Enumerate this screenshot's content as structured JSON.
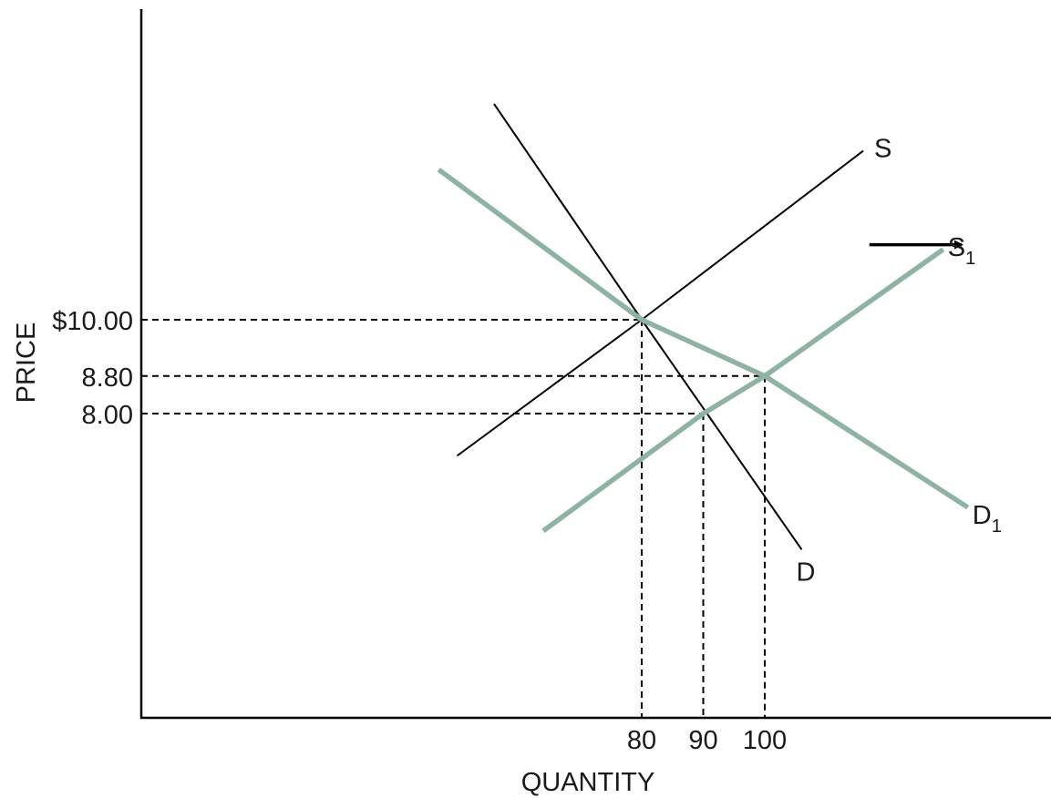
{
  "chart_data": {
    "type": "line",
    "xlabel": "QUANTITY",
    "ylabel": "PRICE",
    "x_ticks": [
      "80",
      "90",
      "100"
    ],
    "y_ticks": [
      "$10.00",
      "8.80",
      "8.00"
    ],
    "colors": {
      "original_curves": "#1a1a1a",
      "shifted_curves": "#8fb3a3",
      "guides": "#1a1a1a"
    },
    "series": [
      {
        "name": "S",
        "label_base": "S",
        "label_sub": "",
        "style": "original",
        "points": [
          [
            50,
            7.1
          ],
          [
            80,
            10.0
          ],
          [
            116,
            13.6
          ]
        ]
      },
      {
        "name": "D",
        "label_base": "D",
        "label_sub": "",
        "style": "original",
        "points": [
          [
            56,
            14.6
          ],
          [
            80,
            10.0
          ],
          [
            106,
            5.1
          ]
        ]
      },
      {
        "name": "S1",
        "label_base": "S",
        "label_sub": "1",
        "style": "shifted",
        "points": [
          [
            64,
            5.5
          ],
          [
            90,
            8.0
          ],
          [
            100,
            8.8
          ],
          [
            129,
            11.5
          ]
        ]
      },
      {
        "name": "D1",
        "label_base": "D",
        "label_sub": "1",
        "style": "shifted",
        "points": [
          [
            47,
            13.2
          ],
          [
            80,
            10.0
          ],
          [
            100,
            8.8
          ],
          [
            133,
            6.0
          ]
        ]
      }
    ],
    "guides": [
      {
        "x": 80,
        "y": 10.0
      },
      {
        "x": 90,
        "y": 8.0
      },
      {
        "x": 100,
        "y": 8.8
      }
    ],
    "annotations": [
      {
        "type": "arrow",
        "direction": "right",
        "from": [
          117,
          11.6
        ],
        "to": [
          132,
          11.6
        ]
      }
    ]
  }
}
